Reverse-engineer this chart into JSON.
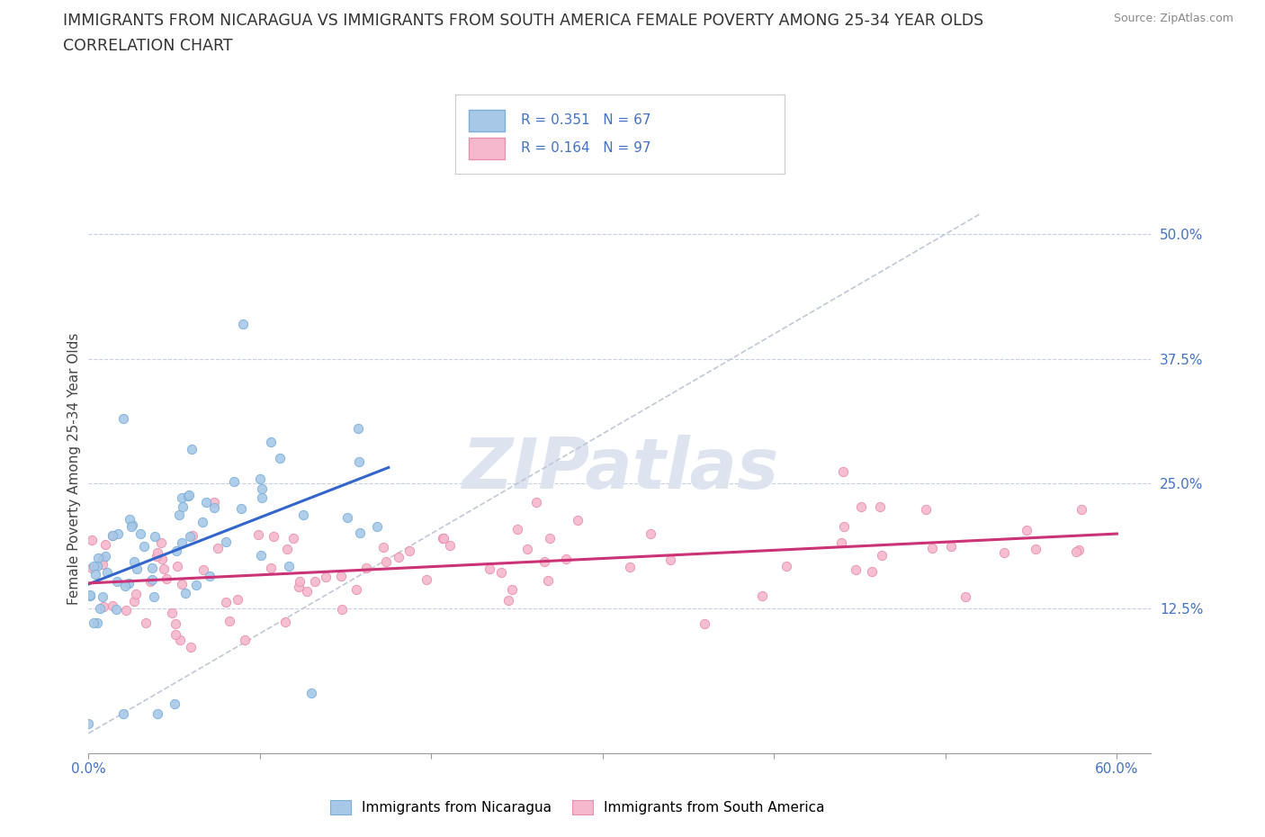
{
  "title_line1": "IMMIGRANTS FROM NICARAGUA VS IMMIGRANTS FROM SOUTH AMERICA FEMALE POVERTY AMONG 25-34 YEAR OLDS",
  "title_line2": "CORRELATION CHART",
  "source": "Source: ZipAtlas.com",
  "ylabel": "Female Poverty Among 25-34 Year Olds",
  "xlim": [
    0.0,
    0.62
  ],
  "ylim": [
    -0.02,
    0.55
  ],
  "ytick_positions": [
    0.0,
    0.125,
    0.25,
    0.375,
    0.5
  ],
  "ytick_labels": [
    "",
    "12.5%",
    "25.0%",
    "37.5%",
    "50.0%"
  ],
  "hlines": [
    0.125,
    0.25,
    0.375,
    0.5
  ],
  "nicaragua_dot_color": "#a8c8e8",
  "nicaragua_edge_color": "#7ab0d8",
  "south_america_dot_color": "#f5b8cc",
  "south_america_edge_color": "#e890aa",
  "trend_nicaragua_color": "#3366cc",
  "trend_south_america_color": "#cc3377",
  "diagonal_color": "#c0c8d8",
  "R_nicaragua": 0.351,
  "N_nicaragua": 67,
  "R_south_america": 0.164,
  "N_south_america": 97,
  "legend_nicaragua": "Immigrants from Nicaragua",
  "legend_south_america": "Immigrants from South America",
  "axis_label_color": "#4472c4",
  "tick_label_color": "#4472c4",
  "watermark_color": "#dde4f0",
  "background_color": "#ffffff",
  "title_color": "#333333",
  "title_fontsize": 12.5,
  "subtitle_fontsize": 12.5,
  "axis_label_fontsize": 11,
  "tick_fontsize": 11,
  "legend_fontsize": 11,
  "source_fontsize": 9
}
